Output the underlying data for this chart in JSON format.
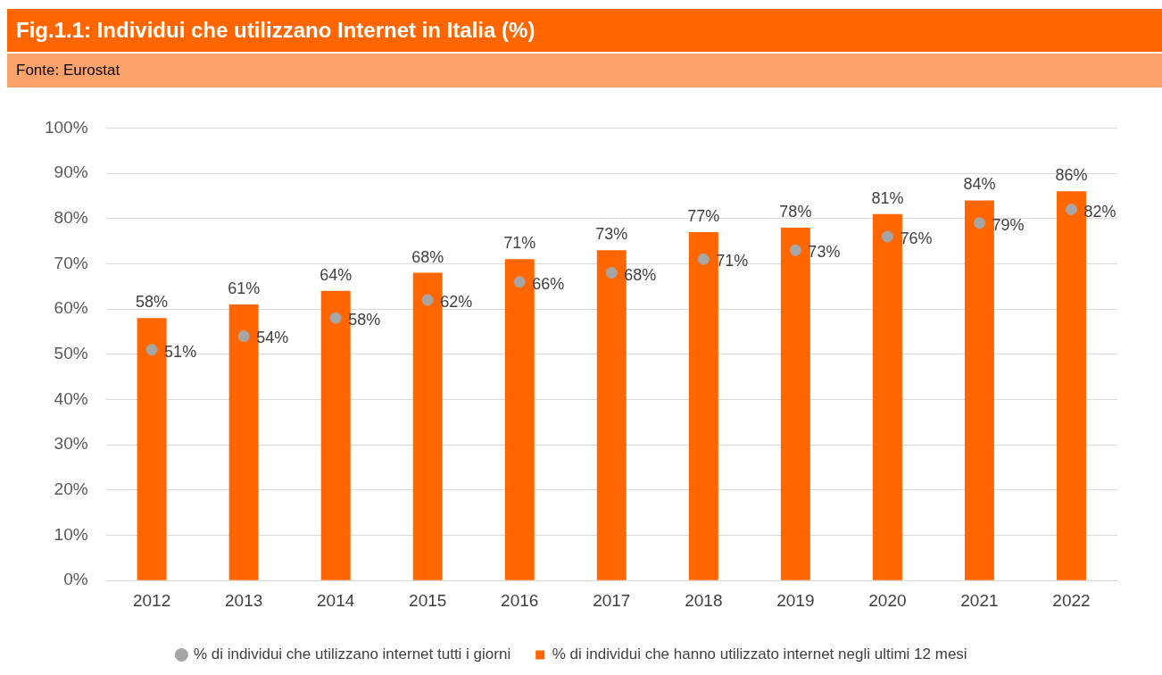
{
  "chart_data": {
    "type": "bar",
    "title": "Fig.1.1: Individui che utilizzano Internet in Italia (%)",
    "subtitle": "Fonte: Eurostat",
    "categories": [
      "2012",
      "2013",
      "2014",
      "2015",
      "2016",
      "2017",
      "2018",
      "2019",
      "2020",
      "2021",
      "2022"
    ],
    "series": [
      {
        "name": "% di individui che hanno utilizzato internet negli ultimi 12 mesi",
        "color": "#ff6600",
        "values": [
          58,
          61,
          64,
          68,
          71,
          73,
          77,
          78,
          81,
          84,
          86
        ],
        "value_labels": [
          "58%",
          "61%",
          "64%",
          "68%",
          "71%",
          "73%",
          "77%",
          "78%",
          "81%",
          "84%",
          "86%"
        ]
      },
      {
        "type": "scatter",
        "marker": "circle",
        "name": "% di individui che utilizzano internet tutti i giorni",
        "color": "#a6a6a6",
        "values": [
          51,
          54,
          58,
          62,
          66,
          68,
          71,
          73,
          76,
          79,
          82
        ],
        "value_labels": [
          "51%",
          "54%",
          "58%",
          "62%",
          "66%",
          "68%",
          "71%",
          "73%",
          "76%",
          "79%",
          "82%"
        ]
      }
    ],
    "ylim": [
      0,
      100
    ],
    "yticks": [
      {
        "value": 0,
        "label": "0%"
      },
      {
        "value": 10,
        "label": "10%"
      },
      {
        "value": 20,
        "label": "20%"
      },
      {
        "value": 30,
        "label": "30%"
      },
      {
        "value": 40,
        "label": "40%"
      },
      {
        "value": 50,
        "label": "50%"
      },
      {
        "value": 60,
        "label": "60%"
      },
      {
        "value": 70,
        "label": "70%"
      },
      {
        "value": 80,
        "label": "80%"
      },
      {
        "value": 90,
        "label": "90%"
      },
      {
        "value": 100,
        "label": "100%"
      }
    ],
    "grid": "y",
    "legend": "bottom"
  }
}
